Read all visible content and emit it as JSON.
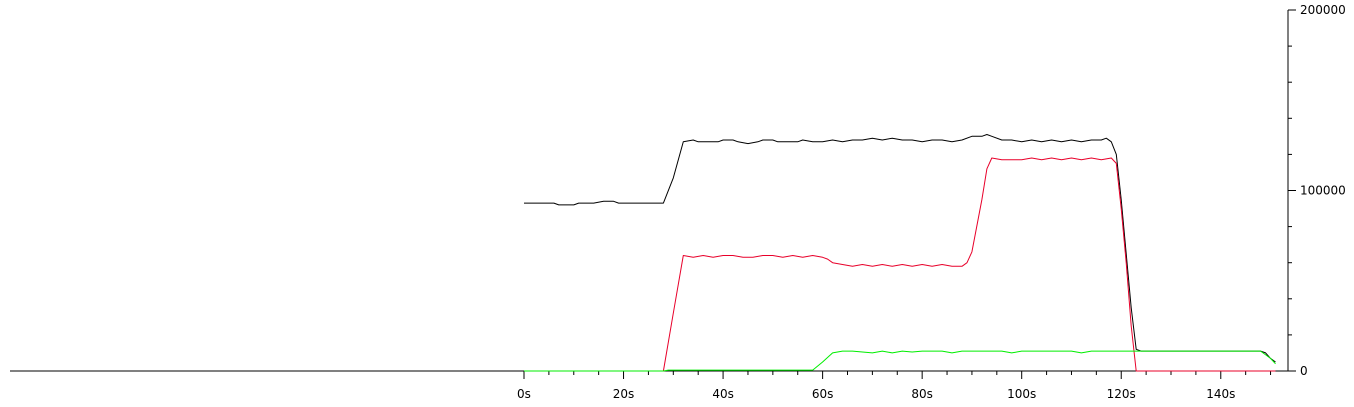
{
  "chart_data": {
    "type": "line",
    "title": "",
    "xlabel": "",
    "ylabel": "",
    "xlim": [
      0,
      152
    ],
    "ylim": [
      0,
      200000
    ],
    "x_ticks": [
      0,
      20,
      40,
      60,
      80,
      100,
      120,
      140
    ],
    "x_tick_labels": [
      "0s",
      "20s",
      "40s",
      "60s",
      "80s",
      "100s",
      "120s",
      "140s"
    ],
    "x_minor_step": 5,
    "y_ticks": [
      0,
      100000,
      200000
    ],
    "y_tick_labels": [
      "0",
      "100000",
      "200000"
    ],
    "y_minor_step": 20000,
    "y_axis_side": "right",
    "grid": false,
    "legend": "none",
    "series": [
      {
        "color": "#000000",
        "points": [
          [
            0,
            93000
          ],
          [
            6,
            93000
          ],
          [
            7,
            92000
          ],
          [
            10,
            92000
          ],
          [
            11,
            93000
          ],
          [
            14,
            93000
          ],
          [
            16,
            94000
          ],
          [
            18,
            94000
          ],
          [
            19,
            93000
          ],
          [
            28,
            93000
          ],
          [
            30,
            107000
          ],
          [
            32,
            127000
          ],
          [
            34,
            128000
          ],
          [
            35,
            127000
          ],
          [
            39,
            127000
          ],
          [
            40,
            128000
          ],
          [
            42,
            128000
          ],
          [
            43,
            127000
          ],
          [
            45,
            126000
          ],
          [
            47,
            127000
          ],
          [
            48,
            128000
          ],
          [
            50,
            128000
          ],
          [
            51,
            127000
          ],
          [
            55,
            127000
          ],
          [
            56,
            128000
          ],
          [
            58,
            127000
          ],
          [
            60,
            127000
          ],
          [
            62,
            128000
          ],
          [
            64,
            127000
          ],
          [
            66,
            128000
          ],
          [
            68,
            128000
          ],
          [
            70,
            129000
          ],
          [
            72,
            128000
          ],
          [
            74,
            129000
          ],
          [
            76,
            128000
          ],
          [
            78,
            128000
          ],
          [
            80,
            127000
          ],
          [
            82,
            128000
          ],
          [
            84,
            128000
          ],
          [
            86,
            127000
          ],
          [
            88,
            128000
          ],
          [
            90,
            130000
          ],
          [
            92,
            130000
          ],
          [
            93,
            131000
          ],
          [
            94,
            130000
          ],
          [
            96,
            128000
          ],
          [
            98,
            128000
          ],
          [
            100,
            127000
          ],
          [
            102,
            128000
          ],
          [
            104,
            127000
          ],
          [
            106,
            128000
          ],
          [
            108,
            127000
          ],
          [
            110,
            128000
          ],
          [
            112,
            127000
          ],
          [
            114,
            128000
          ],
          [
            116,
            128000
          ],
          [
            117,
            129000
          ],
          [
            118,
            127000
          ],
          [
            119,
            120000
          ],
          [
            120,
            95000
          ],
          [
            121,
            65000
          ],
          [
            122,
            35000
          ],
          [
            123,
            12000
          ],
          [
            124,
            11000
          ],
          [
            126,
            11000
          ],
          [
            140,
            11000
          ],
          [
            148,
            11000
          ],
          [
            149,
            10000
          ],
          [
            150,
            7000
          ],
          [
            151,
            5000
          ]
        ]
      },
      {
        "color": "#e8002a",
        "points": [
          [
            0,
            0
          ],
          [
            28,
            0
          ],
          [
            30,
            32000
          ],
          [
            32,
            64000
          ],
          [
            34,
            63000
          ],
          [
            36,
            64000
          ],
          [
            38,
            63000
          ],
          [
            40,
            64000
          ],
          [
            42,
            64000
          ],
          [
            44,
            63000
          ],
          [
            46,
            63000
          ],
          [
            48,
            64000
          ],
          [
            50,
            64000
          ],
          [
            52,
            63000
          ],
          [
            54,
            64000
          ],
          [
            56,
            63000
          ],
          [
            58,
            64000
          ],
          [
            60,
            63000
          ],
          [
            61,
            62000
          ],
          [
            62,
            60000
          ],
          [
            64,
            59000
          ],
          [
            66,
            58000
          ],
          [
            68,
            59000
          ],
          [
            70,
            58000
          ],
          [
            72,
            59000
          ],
          [
            74,
            58000
          ],
          [
            76,
            59000
          ],
          [
            78,
            58000
          ],
          [
            80,
            59000
          ],
          [
            82,
            58000
          ],
          [
            84,
            59000
          ],
          [
            86,
            58000
          ],
          [
            88,
            58000
          ],
          [
            89,
            60000
          ],
          [
            90,
            66000
          ],
          [
            92,
            95000
          ],
          [
            93,
            112000
          ],
          [
            94,
            118000
          ],
          [
            96,
            117000
          ],
          [
            98,
            117000
          ],
          [
            100,
            117000
          ],
          [
            102,
            118000
          ],
          [
            104,
            117000
          ],
          [
            106,
            118000
          ],
          [
            108,
            117000
          ],
          [
            110,
            118000
          ],
          [
            112,
            117000
          ],
          [
            114,
            118000
          ],
          [
            116,
            117000
          ],
          [
            118,
            118000
          ],
          [
            119,
            115000
          ],
          [
            120,
            90000
          ],
          [
            121,
            60000
          ],
          [
            122,
            25000
          ],
          [
            123,
            0
          ],
          [
            151,
            0
          ]
        ]
      },
      {
        "color": "#00ee00",
        "points": [
          [
            0,
            0
          ],
          [
            28,
            0
          ],
          [
            29,
            500
          ],
          [
            58,
            500
          ],
          [
            60,
            5000
          ],
          [
            62,
            10000
          ],
          [
            64,
            11000
          ],
          [
            66,
            11000
          ],
          [
            68,
            10500
          ],
          [
            70,
            10000
          ],
          [
            72,
            11000
          ],
          [
            74,
            10000
          ],
          [
            76,
            11000
          ],
          [
            78,
            10500
          ],
          [
            80,
            11000
          ],
          [
            84,
            11000
          ],
          [
            86,
            10000
          ],
          [
            88,
            11000
          ],
          [
            96,
            11000
          ],
          [
            98,
            10000
          ],
          [
            100,
            11000
          ],
          [
            110,
            11000
          ],
          [
            112,
            10000
          ],
          [
            114,
            11000
          ],
          [
            122,
            11000
          ],
          [
            124,
            11000
          ],
          [
            140,
            11000
          ],
          [
            148,
            11000
          ],
          [
            150,
            7000
          ],
          [
            151,
            4000
          ]
        ]
      }
    ]
  }
}
